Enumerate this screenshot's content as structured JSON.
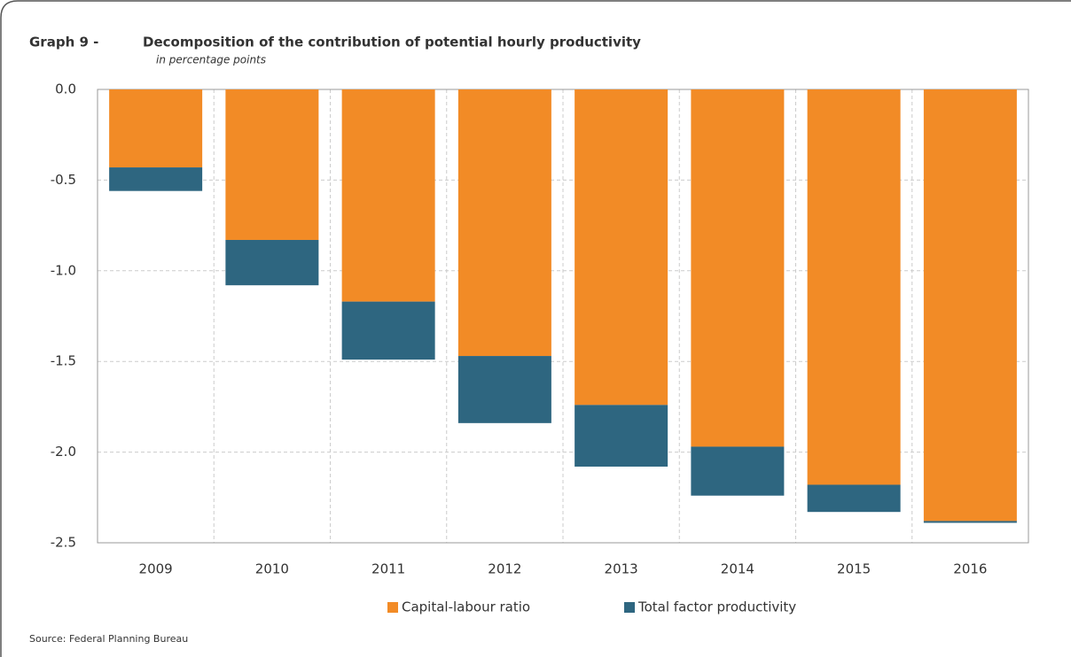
{
  "chart_data": {
    "type": "stacked_bar",
    "graph_label": "Graph 9 -",
    "title": "Decomposition of the contribution of potential hourly productivity",
    "subtitle": "in percentage points",
    "source": "Source: Federal Planning Bureau",
    "categories": [
      "2009",
      "2010",
      "2011",
      "2012",
      "2013",
      "2014",
      "2015",
      "2016"
    ],
    "series": [
      {
        "name": "Capital-labour ratio",
        "color": "#f28b26",
        "values": [
          -0.43,
          -0.83,
          -1.17,
          -1.47,
          -1.74,
          -1.97,
          -2.18,
          -2.38
        ]
      },
      {
        "name": "Total factor productivity",
        "color": "#2e6680",
        "values": [
          -0.13,
          -0.25,
          -0.32,
          -0.37,
          -0.34,
          -0.27,
          -0.15,
          -0.01
        ]
      }
    ],
    "ylim": [
      -2.5,
      0
    ],
    "yticks": [
      {
        "value": 0,
        "label": "0.0"
      },
      {
        "value": -0.5,
        "label": "-0.5"
      },
      {
        "value": -1,
        "label": "-1.0"
      },
      {
        "value": -1.5,
        "label": "-1.5"
      },
      {
        "value": -2,
        "label": "-2.0"
      },
      {
        "value": -2.5,
        "label": "-2.5"
      }
    ],
    "grid": true,
    "legend": "bottom"
  }
}
